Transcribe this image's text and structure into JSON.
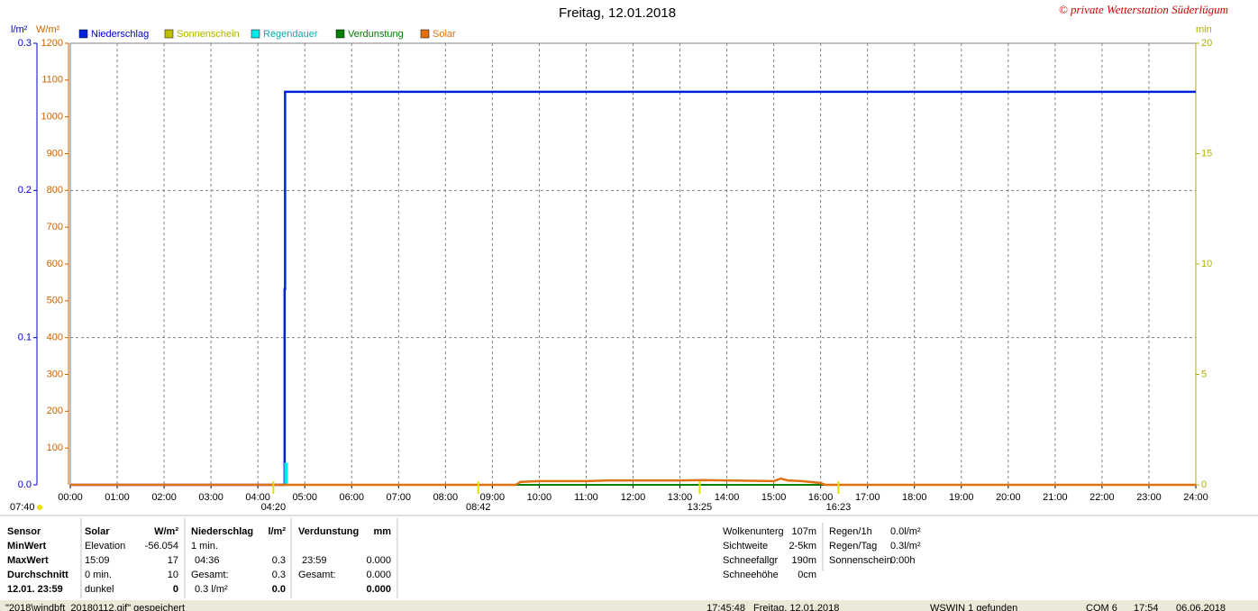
{
  "chart_data": {
    "type": "line",
    "title": "Freitag, 12.01.2018",
    "copyright": "© private Wetterstation Süderlügum",
    "y_unit": "l/m²",
    "yw_unit": "W/m²",
    "y2_unit": "min",
    "xlim": [
      0,
      24
    ],
    "xticks": [
      {
        "value": 0,
        "label": "00:00"
      },
      {
        "value": 1,
        "label": "01:00"
      },
      {
        "value": 2,
        "label": "02:00"
      },
      {
        "value": 3,
        "label": "03:00"
      },
      {
        "value": 4,
        "label": "04:00"
      },
      {
        "value": 5,
        "label": "05:00"
      },
      {
        "value": 6,
        "label": "06:00"
      },
      {
        "value": 7,
        "label": "07:00"
      },
      {
        "value": 8,
        "label": "08:00"
      },
      {
        "value": 9,
        "label": "09:00"
      },
      {
        "value": 10,
        "label": "10:00"
      },
      {
        "value": 11,
        "label": "11:00"
      },
      {
        "value": 12,
        "label": "12:00"
      },
      {
        "value": 13,
        "label": "13:00"
      },
      {
        "value": 14,
        "label": "14:00"
      },
      {
        "value": 15,
        "label": "15:00"
      },
      {
        "value": 16,
        "label": "16:00"
      },
      {
        "value": 17,
        "label": "17:00"
      },
      {
        "value": 18,
        "label": "18:00"
      },
      {
        "value": 19,
        "label": "19:00"
      },
      {
        "value": 20,
        "label": "20:00"
      },
      {
        "value": 21,
        "label": "21:00"
      },
      {
        "value": 22,
        "label": "22:00"
      },
      {
        "value": 23,
        "label": "23:00"
      },
      {
        "value": 24,
        "label": "24:00"
      }
    ],
    "ylim": [
      0,
      0.3
    ],
    "yticks": [
      {
        "value": 0,
        "label": "0.0"
      },
      0.1,
      0.2,
      0.3
    ],
    "ywlim": [
      0,
      1200
    ],
    "ywticks": [
      100,
      200,
      300,
      400,
      500,
      600,
      700,
      800,
      900,
      1000,
      1100,
      1200
    ],
    "y2lim": [
      0,
      20
    ],
    "y2ticks": [
      0,
      5,
      10,
      15,
      20
    ],
    "grid": true,
    "series": [
      {
        "name": "Niederschlag",
        "color": "#0022dd",
        "axis": "y",
        "x": [
          0,
          4.57,
          4.57,
          4.58,
          4.58,
          24
        ],
        "values": [
          0,
          0,
          0.133,
          0.133,
          0.267,
          0.267
        ]
      },
      {
        "name": "Sonnenschein",
        "color": "#c0c000",
        "axis": "y2",
        "x": [],
        "values": []
      },
      {
        "name": "Regendauer",
        "color": "#00e8e8",
        "axis": "y2",
        "style": "bar",
        "x": [
          4.6
        ],
        "values": [
          1
        ]
      },
      {
        "name": "Verdunstung",
        "color": "#008000",
        "axis": "y",
        "x": [
          0,
          24
        ],
        "values": [
          0,
          0
        ]
      },
      {
        "name": "Solar",
        "color": "#e07010",
        "axis": "yw",
        "x": [
          0,
          9.5,
          9.6,
          10,
          11,
          11.5,
          12,
          13,
          13.5,
          14,
          14.5,
          15,
          15.15,
          15.3,
          15.6,
          16,
          16.1,
          24
        ],
        "values": [
          0,
          0,
          8,
          10,
          10,
          12,
          12,
          12,
          13,
          12,
          11,
          10,
          17,
          12,
          10,
          5,
          0,
          0
        ]
      }
    ],
    "time_markers": [
      {
        "x": 4.33,
        "label": "04:20"
      },
      {
        "x": 8.7,
        "label": "08:42"
      },
      {
        "x": 13.42,
        "label": "13:25"
      },
      {
        "x": 16.38,
        "label": "16:23"
      }
    ],
    "left_marker_label": "07:40"
  },
  "table": {
    "labels": [
      "Sensor",
      "MinWert",
      "MaxWert",
      "Durchschnitt",
      "12.01. 23:59"
    ],
    "blocks": [
      {
        "header": [
          "Solar",
          "W/m²"
        ],
        "rows": [
          [
            "Elevation",
            "-56.054"
          ],
          [
            "15:09",
            "17"
          ],
          [
            "0 min.",
            "10"
          ],
          [
            "dunkel",
            "0"
          ]
        ]
      },
      {
        "header": [
          "Niederschlag",
          "l/m²"
        ],
        "rows": [
          [
            "1 min.",
            null
          ],
          [
            "04:36",
            "0.3"
          ],
          [
            "Gesamt:",
            "0.3"
          ],
          [
            "0.3 l/m²",
            "0.0"
          ]
        ]
      },
      {
        "header": [
          "Verdunstung",
          "mm"
        ],
        "rows": [
          [
            null,
            null
          ],
          [
            "23:59",
            "0.000"
          ],
          [
            "Gesamt:",
            "0.000"
          ],
          [
            null,
            "0.000"
          ]
        ]
      }
    ],
    "info1": [
      [
        "Wolkenunterg",
        "107m"
      ],
      [
        "Sichtweite",
        "2-5km"
      ],
      [
        "Schneefallgr",
        "190m"
      ],
      [
        "Schneehöhe",
        "0cm"
      ]
    ],
    "info2": [
      [
        "Regen/1h",
        "0.0l/m²"
      ],
      [
        "Regen/Tag",
        "0.3l/m²"
      ],
      [
        "Sonnenschein",
        "0:00h"
      ]
    ]
  },
  "status": [
    "\"2018\\windbft_20180112.gif\" gespeichert",
    "17:45:48",
    "Freitag, 12.01.2018",
    "WSWIN 1 gefunden",
    "COM 6",
    "17:54",
    "06.06.2018"
  ]
}
